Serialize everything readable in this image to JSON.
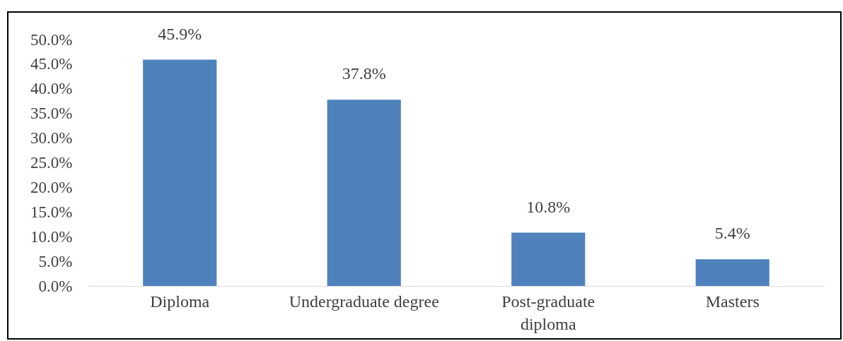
{
  "chart_data": {
    "type": "bar",
    "categories": [
      "Diploma",
      "Undergraduate degree",
      "Post-graduate\ndiploma",
      "Masters"
    ],
    "values": [
      45.9,
      37.8,
      10.8,
      5.4
    ],
    "value_labels": [
      "45.9%",
      "37.8%",
      "10.8%",
      "5.4%"
    ],
    "color": "#4f81bd",
    "ylim": [
      0,
      50
    ],
    "yticks": [
      {
        "value": 0,
        "label": "0.0%"
      },
      {
        "value": 5,
        "label": "5.0%"
      },
      {
        "value": 10,
        "label": "10.0%"
      },
      {
        "value": 15,
        "label": "15.0%"
      },
      {
        "value": 20,
        "label": "20.0%"
      },
      {
        "value": 25,
        "label": "25.0%"
      },
      {
        "value": 30,
        "label": "30.0%"
      },
      {
        "value": 35,
        "label": "35.0%"
      },
      {
        "value": 40,
        "label": "40.0%"
      },
      {
        "value": 45,
        "label": "45.0%"
      },
      {
        "value": 50,
        "label": "50.0%"
      }
    ],
    "grid": false
  }
}
